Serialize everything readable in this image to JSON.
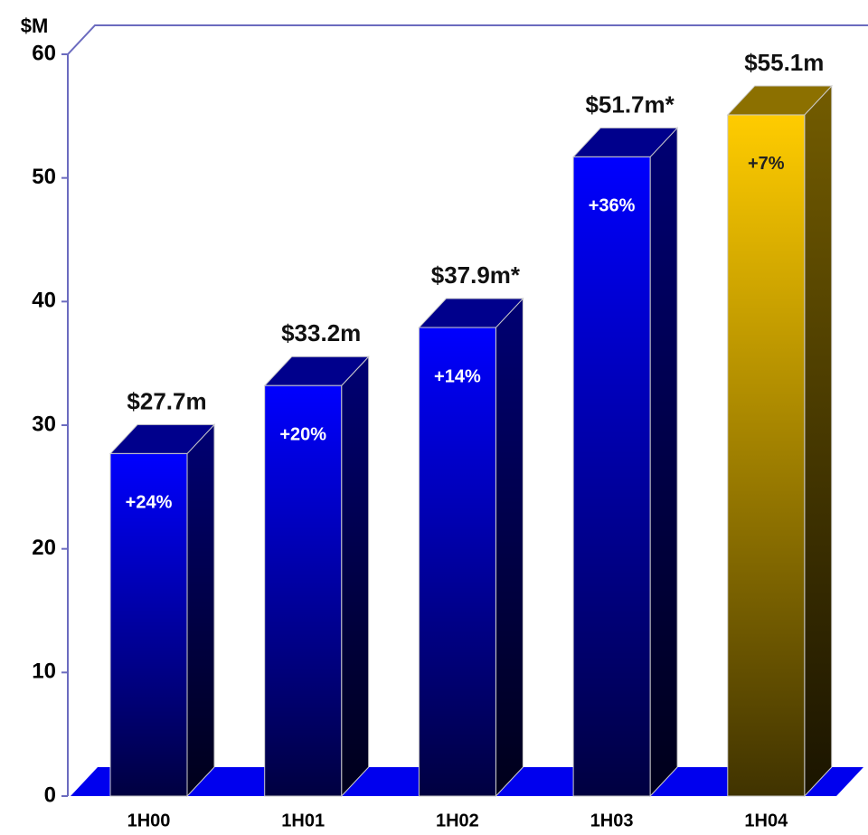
{
  "chart_data": {
    "type": "bar3d",
    "y_axis_label": "$M",
    "categories": [
      "1H00",
      "1H01",
      "1H02",
      "1H03",
      "1H04"
    ],
    "values": [
      27.7,
      33.2,
      37.9,
      51.7,
      55.1
    ],
    "value_labels": [
      "$27.7m",
      "$33.2m",
      "$37.9m*",
      "$51.7m*",
      "$55.1m"
    ],
    "annotations": [
      "+24%",
      "+20%",
      "+14%",
      "+36%",
      "+7%"
    ],
    "colors": [
      "#0000ff",
      "#0000ff",
      "#0000ff",
      "#0000ff",
      "#ffcc00"
    ],
    "ylim": [
      0,
      60
    ],
    "yticks": [
      0,
      10,
      20,
      30,
      40,
      50,
      60
    ]
  }
}
